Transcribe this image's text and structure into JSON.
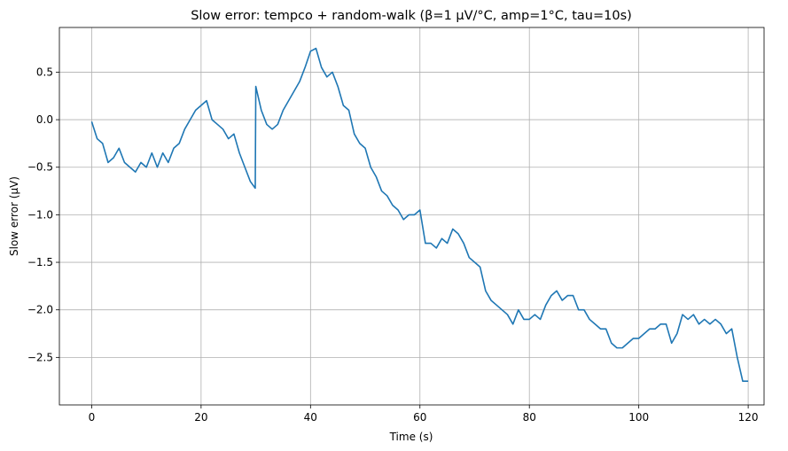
{
  "chart_data": {
    "type": "line",
    "title": "Slow error: tempco + random-walk (β=1 µV/°C, amp=1°C, tau=10s)",
    "x_label": "Time (s)",
    "y_label": "Slow error (µV)",
    "x": [
      0,
      1,
      2,
      3,
      4,
      5,
      6,
      7,
      8,
      9,
      10,
      11,
      12,
      13,
      14,
      15,
      16,
      17,
      18,
      19,
      20,
      21,
      22,
      23,
      24,
      25,
      26,
      27,
      28,
      29,
      29.9,
      30,
      31,
      32,
      33,
      34,
      35,
      36,
      37,
      38,
      39,
      40,
      41,
      42,
      43,
      44,
      45,
      46,
      47,
      48,
      49,
      50,
      51,
      52,
      53,
      54,
      55,
      56,
      57,
      58,
      59,
      60,
      61,
      62,
      63,
      64,
      65,
      66,
      67,
      68,
      69,
      70,
      71,
      72,
      73,
      74,
      75,
      76,
      77,
      78,
      79,
      80,
      81,
      82,
      83,
      84,
      85,
      86,
      87,
      88,
      89,
      90,
      91,
      92,
      93,
      94,
      95,
      96,
      97,
      98,
      99,
      100,
      101,
      102,
      103,
      104,
      105,
      106,
      107,
      108,
      109,
      110,
      111,
      112,
      113,
      114,
      115,
      116,
      117,
      118,
      119,
      120
    ],
    "series": [
      {
        "name": "Slow error",
        "color": "#1f77b4",
        "values": [
          -0.02,
          -0.2,
          -0.25,
          -0.45,
          -0.4,
          -0.3,
          -0.45,
          -0.5,
          -0.55,
          -0.45,
          -0.5,
          -0.35,
          -0.5,
          -0.35,
          -0.45,
          -0.3,
          -0.25,
          -0.1,
          0.0,
          0.1,
          0.15,
          0.2,
          0.0,
          -0.05,
          -0.1,
          -0.2,
          -0.15,
          -0.35,
          -0.5,
          -0.65,
          -0.72,
          0.35,
          0.1,
          -0.05,
          -0.1,
          -0.05,
          0.1,
          0.2,
          0.3,
          0.4,
          0.55,
          0.72,
          0.75,
          0.55,
          0.45,
          0.5,
          0.35,
          0.15,
          0.1,
          -0.15,
          -0.25,
          -0.3,
          -0.5,
          -0.6,
          -0.75,
          -0.8,
          -0.9,
          -0.95,
          -1.05,
          -1.0,
          -1.0,
          -0.95,
          -1.3,
          -1.3,
          -1.35,
          -1.25,
          -1.3,
          -1.15,
          -1.2,
          -1.3,
          -1.45,
          -1.5,
          -1.55,
          -1.8,
          -1.9,
          -1.95,
          -2.0,
          -2.05,
          -2.15,
          -2.0,
          -2.1,
          -2.1,
          -2.05,
          -2.1,
          -1.95,
          -1.85,
          -1.8,
          -1.9,
          -1.85,
          -1.85,
          -2.0,
          -2.0,
          -2.1,
          -2.15,
          -2.2,
          -2.2,
          -2.35,
          -2.4,
          -2.4,
          -2.35,
          -2.3,
          -2.3,
          -2.25,
          -2.2,
          -2.2,
          -2.15,
          -2.15,
          -2.35,
          -2.25,
          -2.05,
          -2.1,
          -2.05,
          -2.15,
          -2.1,
          -2.15,
          -2.1,
          -2.15,
          -2.25,
          -2.2,
          -2.5,
          -2.75,
          -2.75
        ]
      }
    ],
    "xlim": [
      -5.9,
      122.9
    ],
    "ylim": [
      -3.0,
      0.97
    ],
    "xticks": [
      0,
      20,
      40,
      60,
      80,
      100,
      120
    ],
    "yticks": [
      {
        "value": -2.5,
        "label": "−2.5"
      },
      {
        "value": -2.0,
        "label": "−2.0"
      },
      {
        "value": -1.5,
        "label": "−1.5"
      },
      {
        "value": -1.0,
        "label": "−1.0"
      },
      {
        "value": -0.5,
        "label": "−0.5"
      },
      {
        "value": 0.0,
        "label": "0.0"
      },
      0.5
    ],
    "grid": true
  }
}
